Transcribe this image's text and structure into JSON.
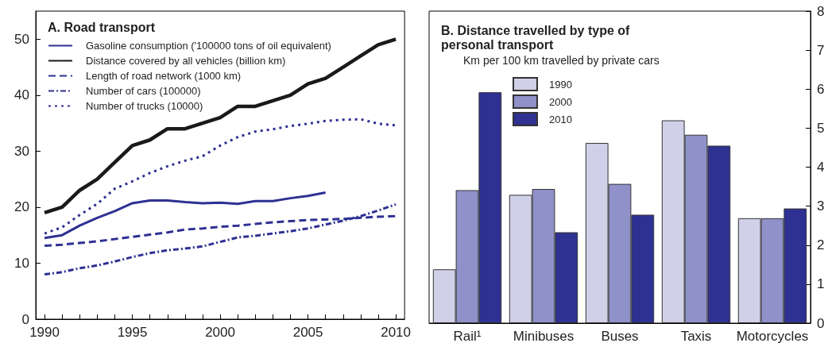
{
  "chart_data": [
    {
      "type": "line",
      "title": "A. Road transport",
      "x": [
        1990,
        1991,
        1992,
        1993,
        1994,
        1995,
        1996,
        1997,
        1998,
        1999,
        2000,
        2001,
        2002,
        2003,
        2004,
        2005,
        2006,
        2007,
        2008,
        2009,
        2010
      ],
      "xlim": [
        1989.5,
        2010.5
      ],
      "xticks": [
        1990,
        {
          "value": 1991,
          "label": null
        },
        {
          "value": 1992,
          "label": null
        },
        {
          "value": 1993,
          "label": null
        },
        {
          "value": 1994,
          "label": null
        },
        1995,
        {
          "value": 1996,
          "label": null
        },
        {
          "value": 1997,
          "label": null
        },
        {
          "value": 1998,
          "label": null
        },
        {
          "value": 1999,
          "label": null
        },
        2000,
        {
          "value": 2001,
          "label": null
        },
        {
          "value": 2002,
          "label": null
        },
        {
          "value": 2003,
          "label": null
        },
        {
          "value": 2004,
          "label": null
        },
        2005,
        {
          "value": 2006,
          "label": null
        },
        {
          "value": 2007,
          "label": null
        },
        {
          "value": 2008,
          "label": null
        },
        {
          "value": 2009,
          "label": null
        },
        2010
      ],
      "ylim": [
        0,
        55
      ],
      "yticks": [
        0,
        10,
        20,
        30,
        40,
        50
      ],
      "grid": false,
      "legend": "top left",
      "marker": "none",
      "series": [
        {
          "name": "Gasoline consumption ('100000 tons of oil equivalent)",
          "color": "#2e3192",
          "line_style": "solid",
          "values": [
            14.5,
            15,
            16.7,
            18.1,
            19.3,
            20.7,
            21.2,
            21.2,
            20.9,
            20.7,
            20.8,
            20.6,
            21.1,
            21.1,
            21.6,
            22,
            22.6,
            null,
            null,
            null,
            null
          ]
        },
        {
          "name": "Distance covered by all vehicles (billion km)",
          "color": "#1a1a1a",
          "line_style": "solid",
          "values": [
            19,
            20,
            23,
            25,
            28,
            31,
            32,
            34,
            34,
            35,
            36,
            38,
            38,
            39,
            40,
            42,
            43,
            45,
            47,
            49,
            50
          ]
        },
        {
          "name": "Length of road network (1000 km)",
          "color": "#2e3192",
          "line_style": "dashed",
          "values": [
            13.1,
            13.3,
            13.6,
            13.9,
            14.3,
            14.7,
            15.1,
            15.5,
            16,
            16.2,
            16.5,
            16.7,
            17,
            17.3,
            17.5,
            17.7,
            17.8,
            17.9,
            18.1,
            18.3,
            18.4
          ]
        },
        {
          "name": "Number of cars (100000)",
          "color": "#2e3192",
          "line_style": "dashdot",
          "values": [
            8,
            8.4,
            9.1,
            9.6,
            10.3,
            11.1,
            11.8,
            12.3,
            12.6,
            13,
            13.8,
            14.6,
            14.9,
            15.3,
            15.7,
            16.2,
            16.9,
            17.6,
            18.4,
            19.4,
            20.5
          ]
        },
        {
          "name": "Number of trucks (10000)",
          "color": "#2e3192",
          "line_style": "dotted",
          "values": [
            15.3,
            16.4,
            18.6,
            20.6,
            23.3,
            24.6,
            26.1,
            27.3,
            28.3,
            29.1,
            31,
            32.5,
            33.5,
            33.9,
            34.5,
            34.9,
            35.4,
            35.6,
            35.7,
            34.9,
            34.6
          ]
        }
      ]
    },
    {
      "type": "bar",
      "title": "B. Distance travelled by type of personal transport",
      "subtitle": "Km per 100 km travelled by private cars",
      "categories": [
        "Rail¹",
        "Minibuses",
        "Buses",
        "Taxis",
        "Motorcycles"
      ],
      "ylim": [
        0,
        8
      ],
      "yticks": [
        0,
        1,
        2,
        3,
        4,
        5,
        6,
        7,
        8
      ],
      "grid": false,
      "legend": "top left",
      "series": [
        {
          "name": "1990",
          "color": "#d0d0e8",
          "values": [
            1.38,
            3.29,
            4.62,
            5.2,
            2.69
          ]
        },
        {
          "name": "2000",
          "color": "#8f91c8",
          "values": [
            3.41,
            3.44,
            3.57,
            4.83,
            2.69
          ]
        },
        {
          "name": "2010",
          "color": "#2e3192",
          "values": [
            5.92,
            2.33,
            2.78,
            4.55,
            2.94
          ]
        }
      ]
    }
  ]
}
